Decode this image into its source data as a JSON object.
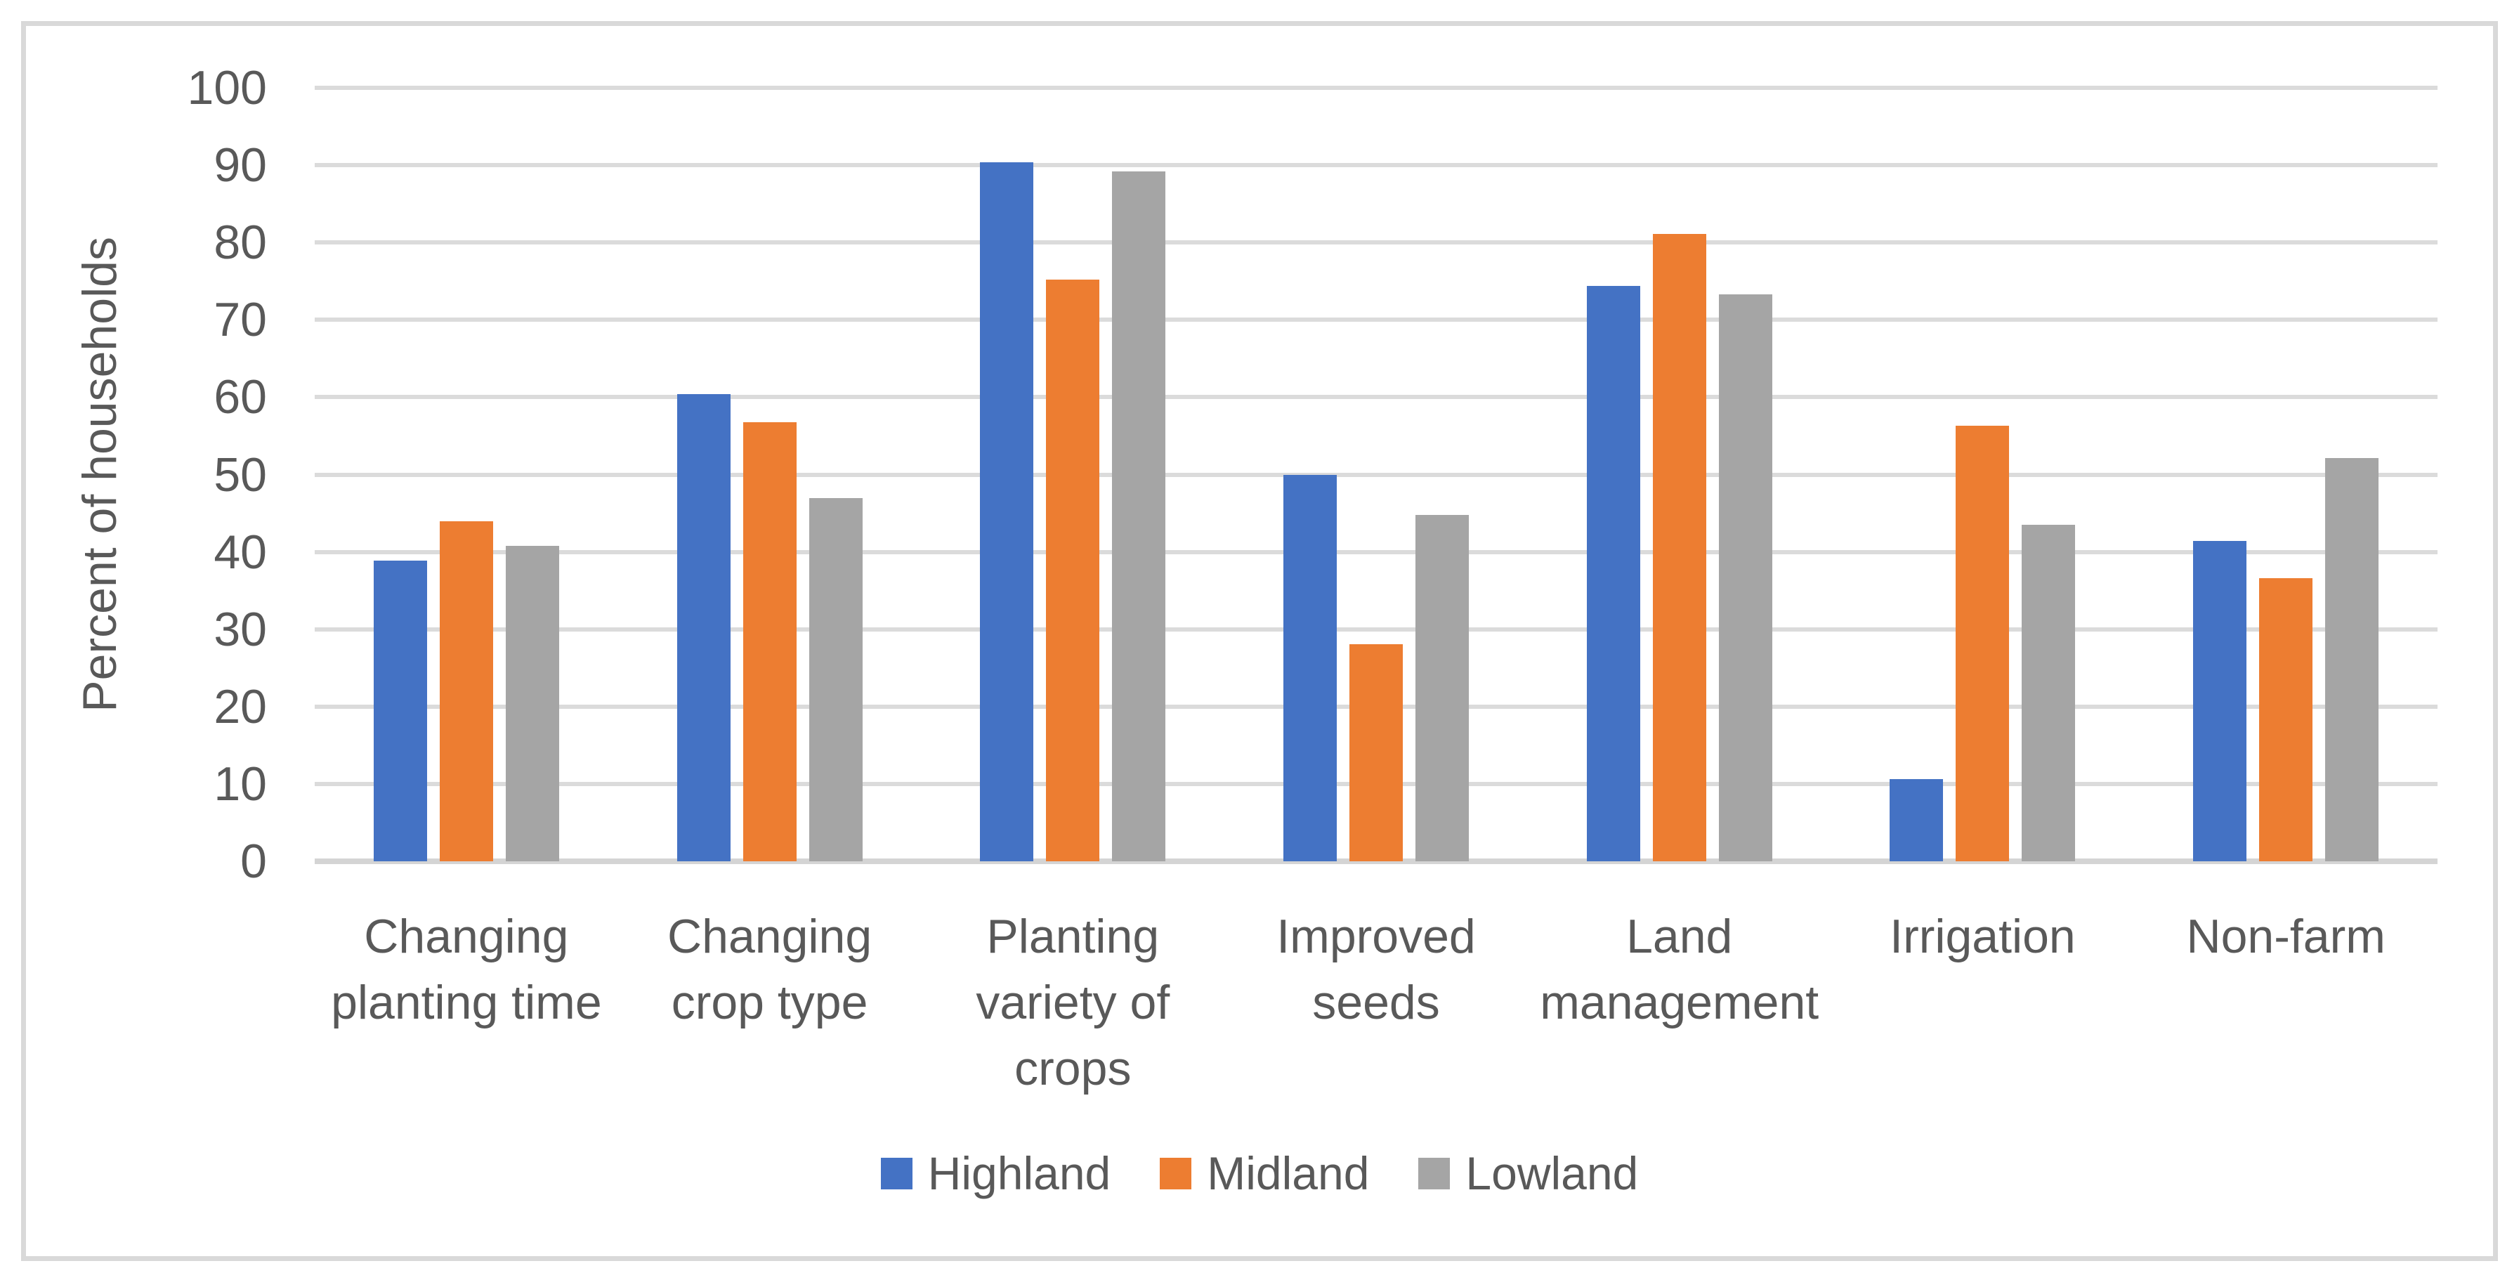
{
  "figure": {
    "colors": {
      "background": "#FFFFFF",
      "frame": "#D9D9D9",
      "grid": "#DBDBDB",
      "axis_line": "#D4D4D4",
      "text": "#595959"
    }
  },
  "chart_data": {
    "type": "bar",
    "title": "",
    "xlabel": "",
    "ylabel": "Percent of households",
    "ylim": [
      0,
      100
    ],
    "ytick_step": 10,
    "ytick_labels": [
      "0",
      "10",
      "20",
      "30",
      "40",
      "50",
      "60",
      "70",
      "80",
      "90",
      "100"
    ],
    "grid": "horizontal",
    "legend_position": "bottom-center",
    "categories": [
      "Changing planting time",
      "Changing crop type",
      "Planting variety of crops",
      "Improved seeds",
      "Land management",
      "Irrigation",
      "Non-farm"
    ],
    "series": [
      {
        "name": "Highland",
        "color": "#4472C4",
        "values": [
          38.9,
          60.4,
          90.4,
          50.0,
          74.4,
          10.6,
          41.4
        ]
      },
      {
        "name": "Midland",
        "color": "#ED7D31",
        "values": [
          44.0,
          56.8,
          75.2,
          28.1,
          81.1,
          56.3,
          36.6
        ]
      },
      {
        "name": "Lowland",
        "color": "#A5A5A5",
        "values": [
          40.8,
          47.0,
          89.2,
          44.8,
          73.3,
          43.5,
          52.1
        ]
      }
    ]
  }
}
